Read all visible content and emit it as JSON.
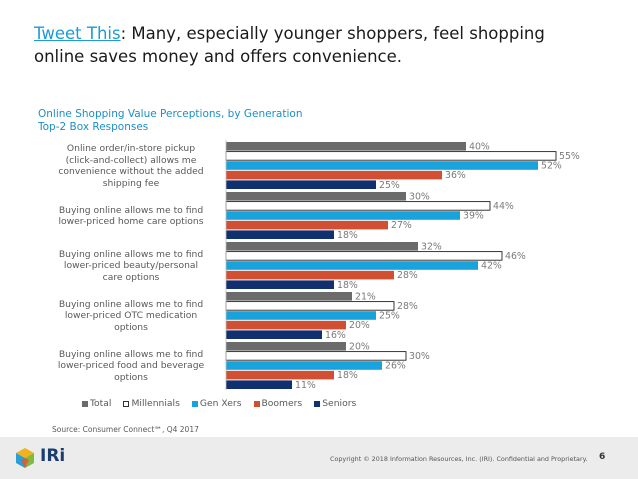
{
  "headline": {
    "tweet_link": "Tweet This",
    "text": ": Many, especially younger shoppers, feel shopping online saves money and offers convenience."
  },
  "chart_title": {
    "line1": "Online Shopping Value Perceptions, by Generation",
    "line2": "Top-2 Box Responses"
  },
  "colors": {
    "total": "#6b6b6b",
    "millennials": "#ffffff",
    "genx": "#18a3dc",
    "boomers": "#d14f33",
    "seniors": "#10306f"
  },
  "chart_data": {
    "type": "bar",
    "orientation": "horizontal",
    "title": "Online Shopping Value Perceptions, by Generation",
    "subtitle": "Top-2 Box Responses",
    "categories": [
      "Online order/in-store pickup (click-and-collect) allows me convenience without the added shipping fee",
      "Buying online allows me to find lower-priced home care options",
      "Buying online allows me to find lower-priced beauty/personal care options",
      "Buying online allows me to find lower-priced OTC medication options",
      "Buying online allows me to find lower-priced food and beverage options"
    ],
    "category_lines": [
      [
        "Online order/in-store pickup",
        "(click-and-collect) allows me",
        "convenience without the added",
        "shipping fee"
      ],
      [
        "Buying online allows me to find",
        "lower-priced home care options"
      ],
      [
        "Buying online allows me to find",
        "lower-priced beauty/personal",
        "care options"
      ],
      [
        "Buying online allows me to find",
        "lower-priced OTC medication",
        "options"
      ],
      [
        "Buying online allows me to find",
        "lower-priced food and beverage",
        "options"
      ]
    ],
    "series": [
      {
        "name": "Total",
        "values": [
          40,
          30,
          32,
          21,
          20
        ],
        "labels": [
          "40%",
          "30%",
          "32%",
          "21%",
          "20%"
        ]
      },
      {
        "name": "Millennials",
        "values": [
          55,
          44,
          46,
          28,
          30
        ],
        "labels": [
          "55%",
          "44%",
          "46%",
          "28%",
          "30%"
        ]
      },
      {
        "name": "Gen Xers",
        "values": [
          52,
          39,
          42,
          25,
          26
        ],
        "labels": [
          "52%",
          "39%",
          "42%",
          "25%",
          "26%"
        ]
      },
      {
        "name": "Boomers",
        "values": [
          36,
          27,
          28,
          20,
          18
        ],
        "labels": [
          "36%",
          "27%",
          "28%",
          "20%",
          "18%"
        ]
      },
      {
        "name": "Seniors",
        "values": [
          25,
          18,
          18,
          16,
          11
        ],
        "labels": [
          "25%",
          "18%",
          "18%",
          "16%",
          "11%"
        ]
      }
    ],
    "xlim": [
      0,
      60
    ],
    "unit": "%",
    "legend_position": "bottom"
  },
  "legend": [
    {
      "label": "Total",
      "key": "total"
    },
    {
      "label": "Millennials",
      "key": "millennials"
    },
    {
      "label": "Gen Xers",
      "key": "genx"
    },
    {
      "label": "Boomers",
      "key": "boomers"
    },
    {
      "label": "Seniors",
      "key": "seniors"
    }
  ],
  "source": "Source: Consumer Connect℠, Q4 2017",
  "footer": {
    "brand": "IRi",
    "copyright": "Copyright © 2018 Information Resources, Inc. (IRI). Confidential and Proprietary.",
    "page_number": "6"
  }
}
